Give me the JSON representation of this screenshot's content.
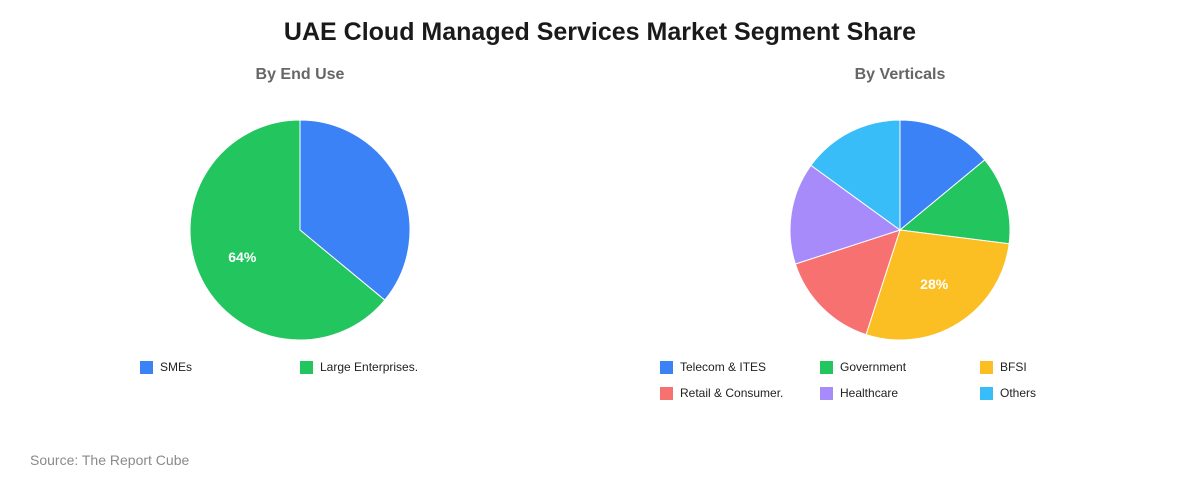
{
  "title": "UAE Cloud Managed Services Market Segment Share",
  "source": "Source: The Report Cube",
  "chart_data": [
    {
      "type": "pie",
      "title": "By End Use",
      "categories": [
        "SMEs",
        "Large Enterprises."
      ],
      "values": [
        36,
        64
      ],
      "colors": [
        "#3b82f6",
        "#22c55e"
      ],
      "data_labels": [
        "",
        "64%"
      ],
      "legend_position": "bottom"
    },
    {
      "type": "pie",
      "title": "By Verticals",
      "categories": [
        "Telecom & ITES",
        "Government",
        "BFSI",
        "Retail & Consumer.",
        "Healthcare",
        "Others"
      ],
      "values": [
        14,
        13,
        28,
        15,
        15,
        15
      ],
      "colors": [
        "#3b82f6",
        "#22c55e",
        "#fbbf24",
        "#f87171",
        "#a78bfa",
        "#38bdf8"
      ],
      "data_labels": [
        "",
        "",
        "28%",
        "",
        "",
        ""
      ],
      "legend_position": "bottom"
    }
  ]
}
